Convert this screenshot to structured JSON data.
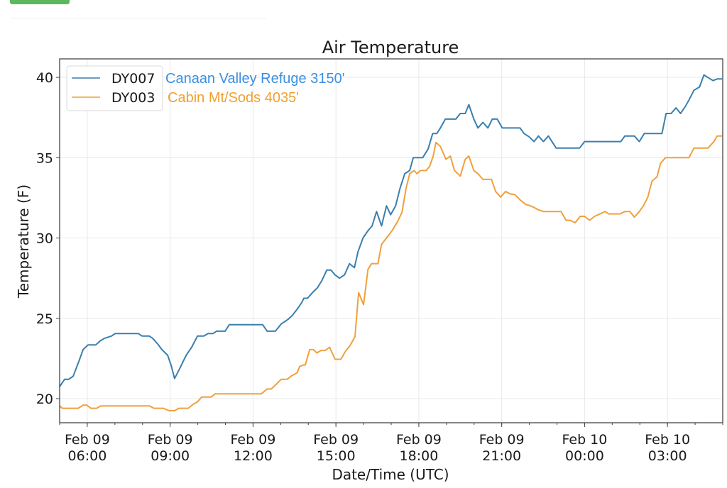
{
  "page": {
    "top_button_color": "#5cb85c"
  },
  "chart_data": {
    "type": "line",
    "title": "Air Temperature",
    "xlabel": "Date/Time (UTC)",
    "ylabel": "Temperature (F)",
    "x_unit": "hours since Feb 09 00:00 UTC",
    "xlim": [
      5.0,
      29.0
    ],
    "ylim": [
      18.5,
      41.15
    ],
    "grid": true,
    "legend_position": "top-left",
    "y_ticks": [
      20,
      25,
      30,
      35,
      40
    ],
    "y_tick_labels": [
      "20",
      "25",
      "30",
      "35",
      "40"
    ],
    "x_ticks": [
      6,
      9,
      12,
      15,
      18,
      21,
      24,
      27
    ],
    "x_tick_labels": [
      [
        "Feb 09",
        "06:00"
      ],
      [
        "Feb 09",
        "09:00"
      ],
      [
        "Feb 09",
        "12:00"
      ],
      [
        "Feb 09",
        "15:00"
      ],
      [
        "Feb 09",
        "18:00"
      ],
      [
        "Feb 09",
        "21:00"
      ],
      [
        "Feb 10",
        "00:00"
      ],
      [
        "Feb 10",
        "03:00"
      ]
    ],
    "x_minor_tick_step": 1,
    "series": [
      {
        "name": "DY007",
        "annotation": "Canaan Valley Refuge 3150'",
        "color": "#3a7fae",
        "annotation_color": "#3b8fe0",
        "points": [
          [
            5.0,
            20.75
          ],
          [
            5.18,
            21.2
          ],
          [
            5.33,
            21.2
          ],
          [
            5.49,
            21.4
          ],
          [
            5.69,
            22.3
          ],
          [
            5.85,
            23.05
          ],
          [
            6.03,
            23.35
          ],
          [
            6.31,
            23.35
          ],
          [
            6.47,
            23.6
          ],
          [
            6.62,
            23.75
          ],
          [
            6.88,
            23.9
          ],
          [
            7.01,
            24.05
          ],
          [
            7.85,
            24.05
          ],
          [
            7.98,
            23.9
          ],
          [
            8.24,
            23.9
          ],
          [
            8.37,
            23.75
          ],
          [
            8.55,
            23.4
          ],
          [
            8.7,
            23.05
          ],
          [
            8.91,
            22.7
          ],
          [
            9.04,
            22.05
          ],
          [
            9.16,
            21.25
          ],
          [
            9.34,
            21.85
          ],
          [
            9.58,
            22.7
          ],
          [
            9.78,
            23.2
          ],
          [
            9.99,
            23.9
          ],
          [
            10.22,
            23.9
          ],
          [
            10.37,
            24.05
          ],
          [
            10.55,
            24.05
          ],
          [
            10.68,
            24.2
          ],
          [
            10.99,
            24.2
          ],
          [
            11.14,
            24.6
          ],
          [
            12.35,
            24.6
          ],
          [
            12.51,
            24.2
          ],
          [
            12.81,
            24.2
          ],
          [
            13.02,
            24.65
          ],
          [
            13.28,
            24.95
          ],
          [
            13.43,
            25.2
          ],
          [
            13.59,
            25.55
          ],
          [
            13.77,
            26.0
          ],
          [
            13.84,
            26.25
          ],
          [
            13.97,
            26.25
          ],
          [
            14.15,
            26.6
          ],
          [
            14.33,
            26.9
          ],
          [
            14.49,
            27.35
          ],
          [
            14.67,
            28.0
          ],
          [
            14.82,
            28.0
          ],
          [
            14.97,
            27.7
          ],
          [
            15.13,
            27.5
          ],
          [
            15.31,
            27.7
          ],
          [
            15.49,
            28.4
          ],
          [
            15.67,
            28.15
          ],
          [
            15.8,
            29.15
          ],
          [
            15.98,
            30.0
          ],
          [
            16.16,
            30.45
          ],
          [
            16.31,
            30.75
          ],
          [
            16.47,
            31.65
          ],
          [
            16.65,
            30.75
          ],
          [
            16.83,
            32.0
          ],
          [
            16.98,
            31.45
          ],
          [
            17.16,
            32.0
          ],
          [
            17.32,
            33.1
          ],
          [
            17.49,
            34.0
          ],
          [
            17.67,
            34.2
          ],
          [
            17.8,
            35.0
          ],
          [
            18.14,
            35.0
          ],
          [
            18.34,
            35.55
          ],
          [
            18.5,
            36.5
          ],
          [
            18.65,
            36.5
          ],
          [
            18.78,
            36.85
          ],
          [
            18.96,
            37.4
          ],
          [
            19.34,
            37.4
          ],
          [
            19.5,
            37.75
          ],
          [
            19.68,
            37.75
          ],
          [
            19.81,
            38.3
          ],
          [
            19.99,
            37.4
          ],
          [
            20.14,
            36.85
          ],
          [
            20.32,
            37.2
          ],
          [
            20.5,
            36.85
          ],
          [
            20.66,
            37.4
          ],
          [
            20.84,
            37.4
          ],
          [
            21.02,
            36.85
          ],
          [
            21.66,
            36.85
          ],
          [
            21.81,
            36.5
          ],
          [
            21.99,
            36.3
          ],
          [
            22.17,
            36.0
          ],
          [
            22.33,
            36.35
          ],
          [
            22.51,
            36.0
          ],
          [
            22.69,
            36.35
          ],
          [
            22.97,
            35.6
          ],
          [
            23.82,
            35.6
          ],
          [
            24.0,
            36.0
          ],
          [
            25.31,
            36.0
          ],
          [
            25.46,
            36.35
          ],
          [
            25.8,
            36.35
          ],
          [
            25.98,
            36.0
          ],
          [
            26.16,
            36.5
          ],
          [
            26.8,
            36.5
          ],
          [
            26.95,
            37.75
          ],
          [
            27.13,
            37.75
          ],
          [
            27.31,
            38.1
          ],
          [
            27.47,
            37.75
          ],
          [
            27.65,
            38.2
          ],
          [
            27.78,
            38.6
          ],
          [
            27.96,
            39.2
          ],
          [
            28.16,
            39.4
          ],
          [
            28.32,
            40.15
          ],
          [
            28.55,
            39.9
          ],
          [
            28.65,
            39.8
          ],
          [
            28.8,
            39.9
          ],
          [
            28.98,
            39.9
          ]
        ]
      },
      {
        "name": "DY003",
        "annotation": "Cabin Mt/Sods 4035'",
        "color": "#f0a03c",
        "annotation_color": "#f0a030",
        "points": [
          [
            5.0,
            19.55
          ],
          [
            5.1,
            19.4
          ],
          [
            5.67,
            19.4
          ],
          [
            5.85,
            19.6
          ],
          [
            5.98,
            19.6
          ],
          [
            6.13,
            19.4
          ],
          [
            6.34,
            19.4
          ],
          [
            6.49,
            19.55
          ],
          [
            8.24,
            19.55
          ],
          [
            8.42,
            19.4
          ],
          [
            8.75,
            19.4
          ],
          [
            8.96,
            19.25
          ],
          [
            9.16,
            19.25
          ],
          [
            9.32,
            19.4
          ],
          [
            9.65,
            19.4
          ],
          [
            9.83,
            19.65
          ],
          [
            9.99,
            19.8
          ],
          [
            10.14,
            20.1
          ],
          [
            10.48,
            20.1
          ],
          [
            10.63,
            20.3
          ],
          [
            12.3,
            20.3
          ],
          [
            12.51,
            20.6
          ],
          [
            12.66,
            20.6
          ],
          [
            12.87,
            20.95
          ],
          [
            13.02,
            21.2
          ],
          [
            13.23,
            21.2
          ],
          [
            13.38,
            21.4
          ],
          [
            13.59,
            21.6
          ],
          [
            13.69,
            22.0
          ],
          [
            13.82,
            22.1
          ],
          [
            13.89,
            22.1
          ],
          [
            14.05,
            23.05
          ],
          [
            14.18,
            23.05
          ],
          [
            14.31,
            22.85
          ],
          [
            14.46,
            23.0
          ],
          [
            14.61,
            23.0
          ],
          [
            14.77,
            23.2
          ],
          [
            14.97,
            22.45
          ],
          [
            15.18,
            22.45
          ],
          [
            15.33,
            22.9
          ],
          [
            15.51,
            23.3
          ],
          [
            15.69,
            23.85
          ],
          [
            15.82,
            26.6
          ],
          [
            16.0,
            25.85
          ],
          [
            16.16,
            28.05
          ],
          [
            16.29,
            28.4
          ],
          [
            16.52,
            28.4
          ],
          [
            16.65,
            29.6
          ],
          [
            16.85,
            30.05
          ],
          [
            17.03,
            30.45
          ],
          [
            17.24,
            31.05
          ],
          [
            17.39,
            31.6
          ],
          [
            17.54,
            33.1
          ],
          [
            17.67,
            34.0
          ],
          [
            17.83,
            34.2
          ],
          [
            17.93,
            34.0
          ],
          [
            18.06,
            34.2
          ],
          [
            18.26,
            34.2
          ],
          [
            18.39,
            34.45
          ],
          [
            18.52,
            35.1
          ],
          [
            18.62,
            35.95
          ],
          [
            18.78,
            35.7
          ],
          [
            18.88,
            35.3
          ],
          [
            18.98,
            34.9
          ],
          [
            19.14,
            35.1
          ],
          [
            19.29,
            34.2
          ],
          [
            19.5,
            33.85
          ],
          [
            19.68,
            34.9
          ],
          [
            19.81,
            35.1
          ],
          [
            19.99,
            34.2
          ],
          [
            20.14,
            34.0
          ],
          [
            20.32,
            33.65
          ],
          [
            20.63,
            33.65
          ],
          [
            20.78,
            32.9
          ],
          [
            20.96,
            32.55
          ],
          [
            21.14,
            32.9
          ],
          [
            21.3,
            32.75
          ],
          [
            21.48,
            32.7
          ],
          [
            21.68,
            32.35
          ],
          [
            21.86,
            32.1
          ],
          [
            22.04,
            32.0
          ],
          [
            22.17,
            31.9
          ],
          [
            22.33,
            31.75
          ],
          [
            22.51,
            31.65
          ],
          [
            23.15,
            31.65
          ],
          [
            23.33,
            31.1
          ],
          [
            23.48,
            31.1
          ],
          [
            23.66,
            30.95
          ],
          [
            23.84,
            31.35
          ],
          [
            24.0,
            31.35
          ],
          [
            24.18,
            31.1
          ],
          [
            24.36,
            31.35
          ],
          [
            24.56,
            31.5
          ],
          [
            24.74,
            31.65
          ],
          [
            24.87,
            31.5
          ],
          [
            25.28,
            31.5
          ],
          [
            25.46,
            31.65
          ],
          [
            25.64,
            31.65
          ],
          [
            25.8,
            31.3
          ],
          [
            25.98,
            31.65
          ],
          [
            26.13,
            32.0
          ],
          [
            26.29,
            32.55
          ],
          [
            26.44,
            33.55
          ],
          [
            26.62,
            33.8
          ],
          [
            26.75,
            34.65
          ],
          [
            26.93,
            35.0
          ],
          [
            27.78,
            35.0
          ],
          [
            27.96,
            35.6
          ],
          [
            28.47,
            35.6
          ],
          [
            28.68,
            36.0
          ],
          [
            28.8,
            36.35
          ],
          [
            28.98,
            36.35
          ]
        ]
      }
    ]
  }
}
